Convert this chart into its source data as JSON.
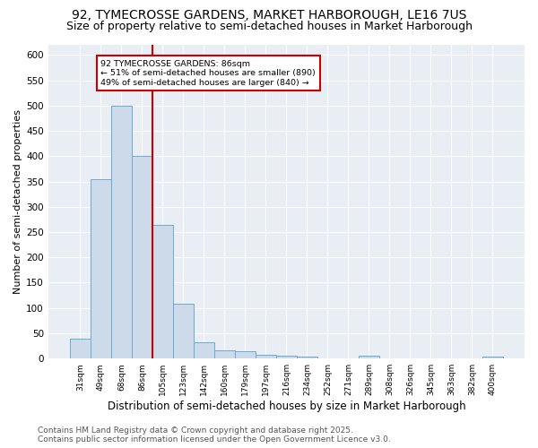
{
  "title1": "92, TYMECROSSE GARDENS, MARKET HARBOROUGH, LE16 7US",
  "title2": "Size of property relative to semi-detached houses in Market Harborough",
  "xlabel": "Distribution of semi-detached houses by size in Market Harborough",
  "ylabel": "Number of semi-detached properties",
  "categories": [
    "31sqm",
    "49sqm",
    "68sqm",
    "86sqm",
    "105sqm",
    "123sqm",
    "142sqm",
    "160sqm",
    "179sqm",
    "197sqm",
    "216sqm",
    "234sqm",
    "252sqm",
    "271sqm",
    "289sqm",
    "308sqm",
    "326sqm",
    "345sqm",
    "363sqm",
    "382sqm",
    "400sqm"
  ],
  "values": [
    40,
    355,
    500,
    400,
    265,
    108,
    32,
    17,
    15,
    8,
    5,
    4,
    1,
    0,
    5,
    0,
    0,
    0,
    0,
    0,
    4
  ],
  "bar_color": "#ccdaea",
  "bar_edge_color": "#6aaad4",
  "vline_color": "#cc0000",
  "annotation_text": "92 TYMECROSSE GARDENS: 86sqm\n← 51% of semi-detached houses are smaller (890)\n49% of semi-detached houses are larger (840) →",
  "annotation_box_color": "#ffffff",
  "annotation_box_edge": "#cc0000",
  "ylim": [
    0,
    620
  ],
  "yticks": [
    0,
    50,
    100,
    150,
    200,
    250,
    300,
    350,
    400,
    450,
    500,
    550,
    600
  ],
  "background_color": "#e8eef4",
  "footer": "Contains HM Land Registry data © Crown copyright and database right 2025.\nContains public sector information licensed under the Open Government Licence v3.0.",
  "title1_fontsize": 10,
  "title2_fontsize": 9,
  "xlabel_fontsize": 8.5,
  "ylabel_fontsize": 8,
  "footer_fontsize": 6.5
}
